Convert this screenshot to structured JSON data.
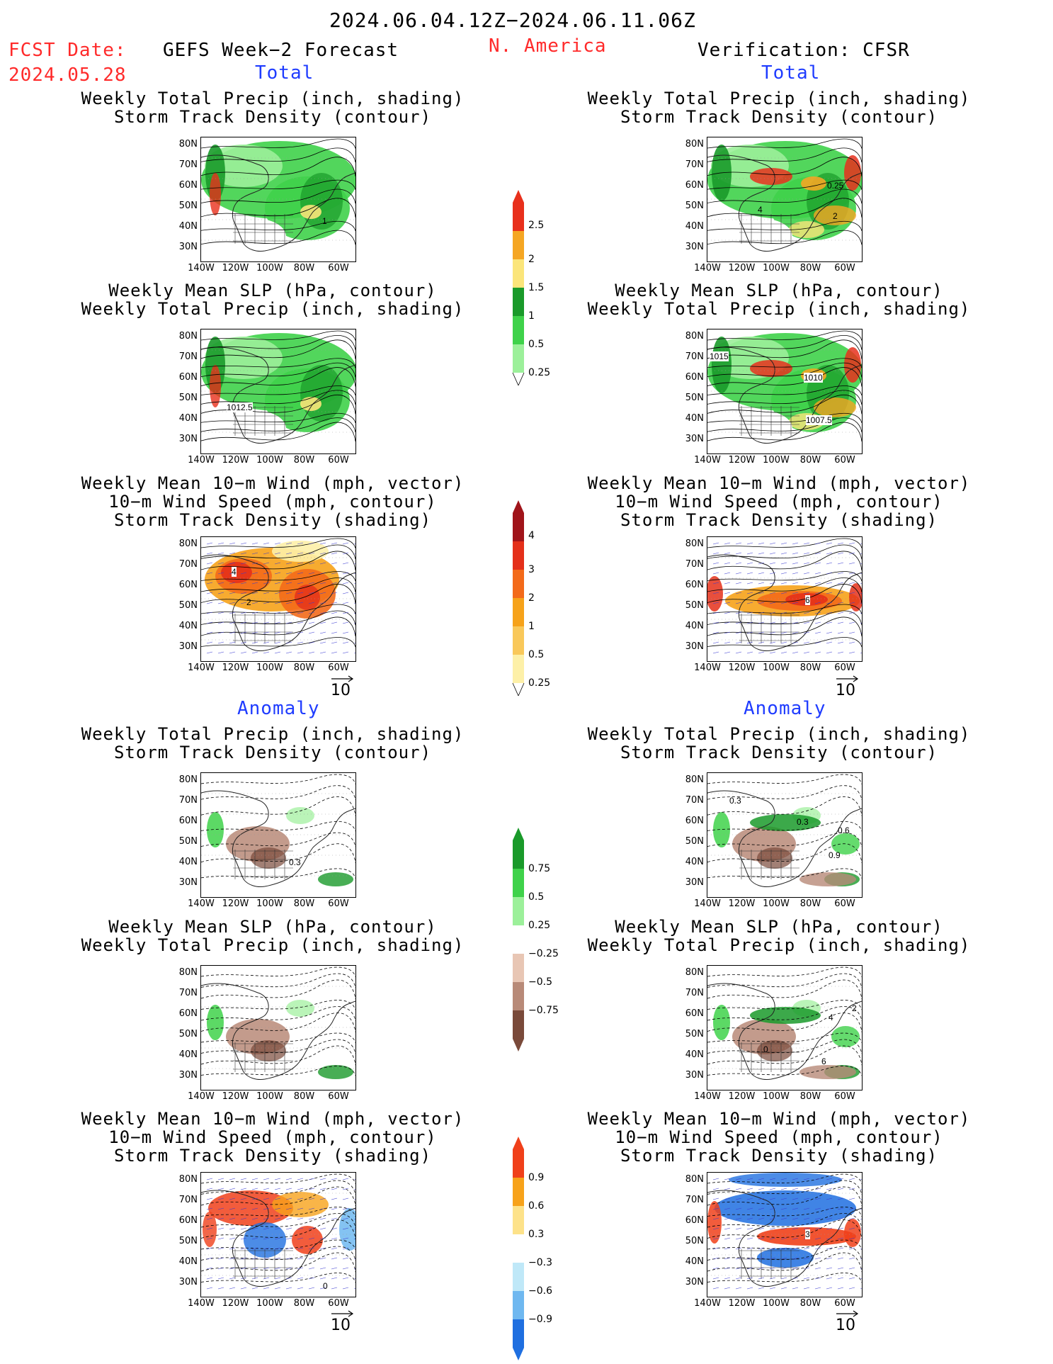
{
  "header": {
    "date_range": "2024.06.04.12Z−2024.06.11.06Z",
    "fcst_label": "FCST Date:",
    "fcst_date": "2024.05.28",
    "left_title": "GEFS Week−2 Forecast",
    "region": "N. America",
    "right_title": "Verification: CFSR",
    "total_label": "Total",
    "anomaly_label": "Anomaly"
  },
  "panel_titles": {
    "precip_track": [
      "Weekly Total Precip (inch, shading)",
      "Storm Track Density (contour)"
    ],
    "slp_precip": [
      "Weekly Mean SLP (hPa, contour)",
      "Weekly Total Precip (inch, shading)"
    ],
    "wind_track": [
      "Weekly Mean 10−m Wind (mph, vector)",
      "10−m Wind Speed (mph, contour)",
      "Storm Track Density (shading)"
    ]
  },
  "axes": {
    "lat_labels": [
      "80N",
      "70N",
      "60N",
      "50N",
      "40N",
      "30N"
    ],
    "lon_labels": [
      "140W",
      "120W",
      "100W",
      "80W",
      "60W"
    ]
  },
  "vector_ref": "10",
  "colorbars": {
    "precip_total": {
      "labels": [
        "2.5",
        "2",
        "1.5",
        "1",
        "0.5",
        "0.25"
      ],
      "colors": [
        "#e8301c",
        "#f5a623",
        "#fbe57a",
        "#1a9a2a",
        "#3fd24a",
        "#9cf09a"
      ]
    },
    "track_total": {
      "labels": [
        "4",
        "3",
        "2",
        "1",
        "0.5",
        "0.25"
      ],
      "colors": [
        "#a0141a",
        "#e4301a",
        "#f36a1a",
        "#f6a21a",
        "#f9c85a",
        "#fdf0a8"
      ]
    },
    "precip_anom": {
      "labels": [
        "0.75",
        "0.5",
        "0.25",
        "−0.25",
        "−0.5",
        "−0.75"
      ],
      "colors": [
        "#1a9a2a",
        "#3fd24a",
        "#9cf09a",
        "#ffffff",
        "#e8c6b4",
        "#b88a78",
        "#7a4a3a"
      ]
    },
    "track_anom": {
      "labels": [
        "0.9",
        "0.6",
        "0.3",
        "−0.3",
        "−0.6",
        "−0.9"
      ],
      "colors": [
        "#f0401a",
        "#f7a21a",
        "#fde28a",
        "#ffffff",
        "#bfe8f8",
        "#6fb8f0",
        "#1f6fe0"
      ]
    }
  },
  "map_labels": {
    "l1": "1",
    "r1a": "0.25",
    "r1b": "2",
    "r1c": "4",
    "l2": "1012.5",
    "r2a": "1015",
    "r2b": "1010",
    "r2c": "1007.5",
    "l3": "4",
    "l3b": "2",
    "r3": "6",
    "l4": "0.3",
    "r4a": "0.3",
    "r4b": "0.3",
    "r4c": "0.6",
    "r4d": "0.9",
    "r5a": "2",
    "r5b": "4",
    "r5c": "6",
    "r5d": "0",
    "l6": "0",
    "r6": "3"
  }
}
